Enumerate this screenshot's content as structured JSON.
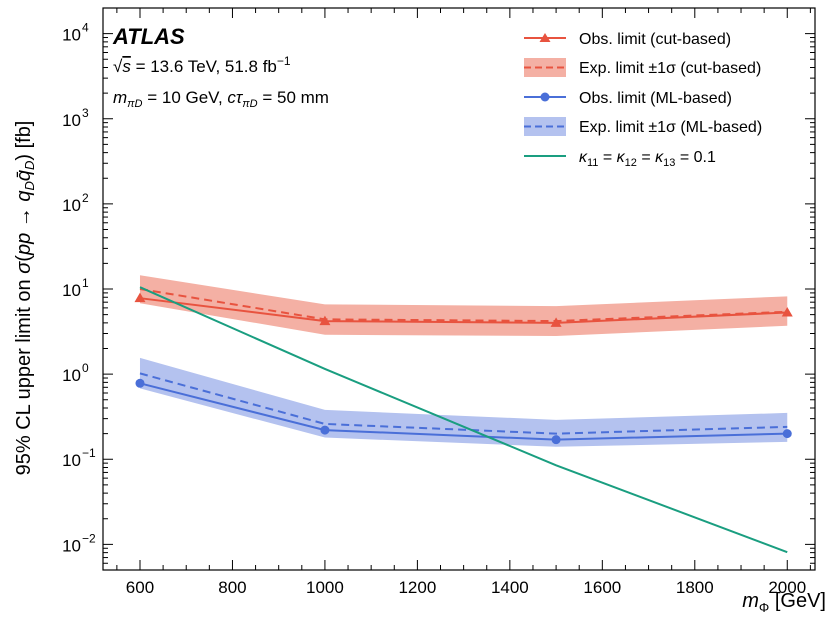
{
  "chart_data": {
    "type": "line",
    "x_scale": "linear",
    "y_scale": "log",
    "xlim": [
      520,
      2060
    ],
    "ylim": [
      0.005,
      20000
    ],
    "xticks": [
      600,
      800,
      1000,
      1200,
      1400,
      1600,
      1800,
      2000
    ],
    "yticks": [
      0.01,
      0.1,
      1,
      10,
      100,
      1000,
      10000
    ],
    "ytick_labels": [
      {
        "base": "10",
        "exp": "−2"
      },
      {
        "base": "10",
        "exp": "−1"
      },
      {
        "base": "10",
        "exp": "0"
      },
      {
        "base": "10",
        "exp": "1"
      },
      {
        "base": "10",
        "exp": "2"
      },
      {
        "base": "10",
        "exp": "3"
      },
      {
        "base": "10",
        "exp": "4"
      }
    ],
    "xlabel": "m_Φ [GeV]",
    "ylabel": "95% CL upper limit on σ(pp → q_D q̄_D) [fb]",
    "experiment": "ATLAS",
    "info_line_1": "√s = 13.6 TeV, 51.8 fb⁻¹",
    "info_line_2": "m_πD = 10 GeV, cτ_πD = 50 mm",
    "legend_position": "top-right",
    "series": [
      {
        "name": "Obs. limit (cut-based)",
        "kind": "obs",
        "color": "#e8533f",
        "marker": "triangle",
        "x": [
          600,
          1000,
          1500,
          2000
        ],
        "y": [
          7.8,
          4.2,
          4.0,
          5.3
        ]
      },
      {
        "name": "Exp. limit ±1σ (cut-based)",
        "kind": "exp",
        "color": "#e8533f",
        "band_color": "#f4b0a4",
        "x": [
          600,
          1000,
          1500,
          2000
        ],
        "y": [
          10.0,
          4.4,
          4.2,
          5.4
        ],
        "band_low": [
          6.8,
          2.9,
          2.8,
          3.7
        ],
        "band_high": [
          14.5,
          6.6,
          6.3,
          8.2
        ]
      },
      {
        "name": "Obs. limit (ML-based)",
        "kind": "obs",
        "color": "#4a6fd8",
        "marker": "circle",
        "x": [
          600,
          1000,
          1500,
          2000
        ],
        "y": [
          0.78,
          0.22,
          0.17,
          0.2
        ]
      },
      {
        "name": "Exp. limit ±1σ (ML-based)",
        "kind": "exp",
        "color": "#4a6fd8",
        "band_color": "#b4c2ef",
        "x": [
          600,
          1000,
          1500,
          2000
        ],
        "y": [
          1.02,
          0.26,
          0.2,
          0.24
        ],
        "band_low": [
          0.68,
          0.18,
          0.14,
          0.16
        ],
        "band_high": [
          1.55,
          0.38,
          0.29,
          0.35
        ]
      },
      {
        "name": "κ11 = κ12 = κ13 = 0.1",
        "kind": "theory",
        "color": "#1a9e80",
        "x": [
          600,
          1000,
          1500,
          2000
        ],
        "y": [
          10.5,
          1.15,
          0.085,
          0.0081
        ]
      }
    ]
  }
}
